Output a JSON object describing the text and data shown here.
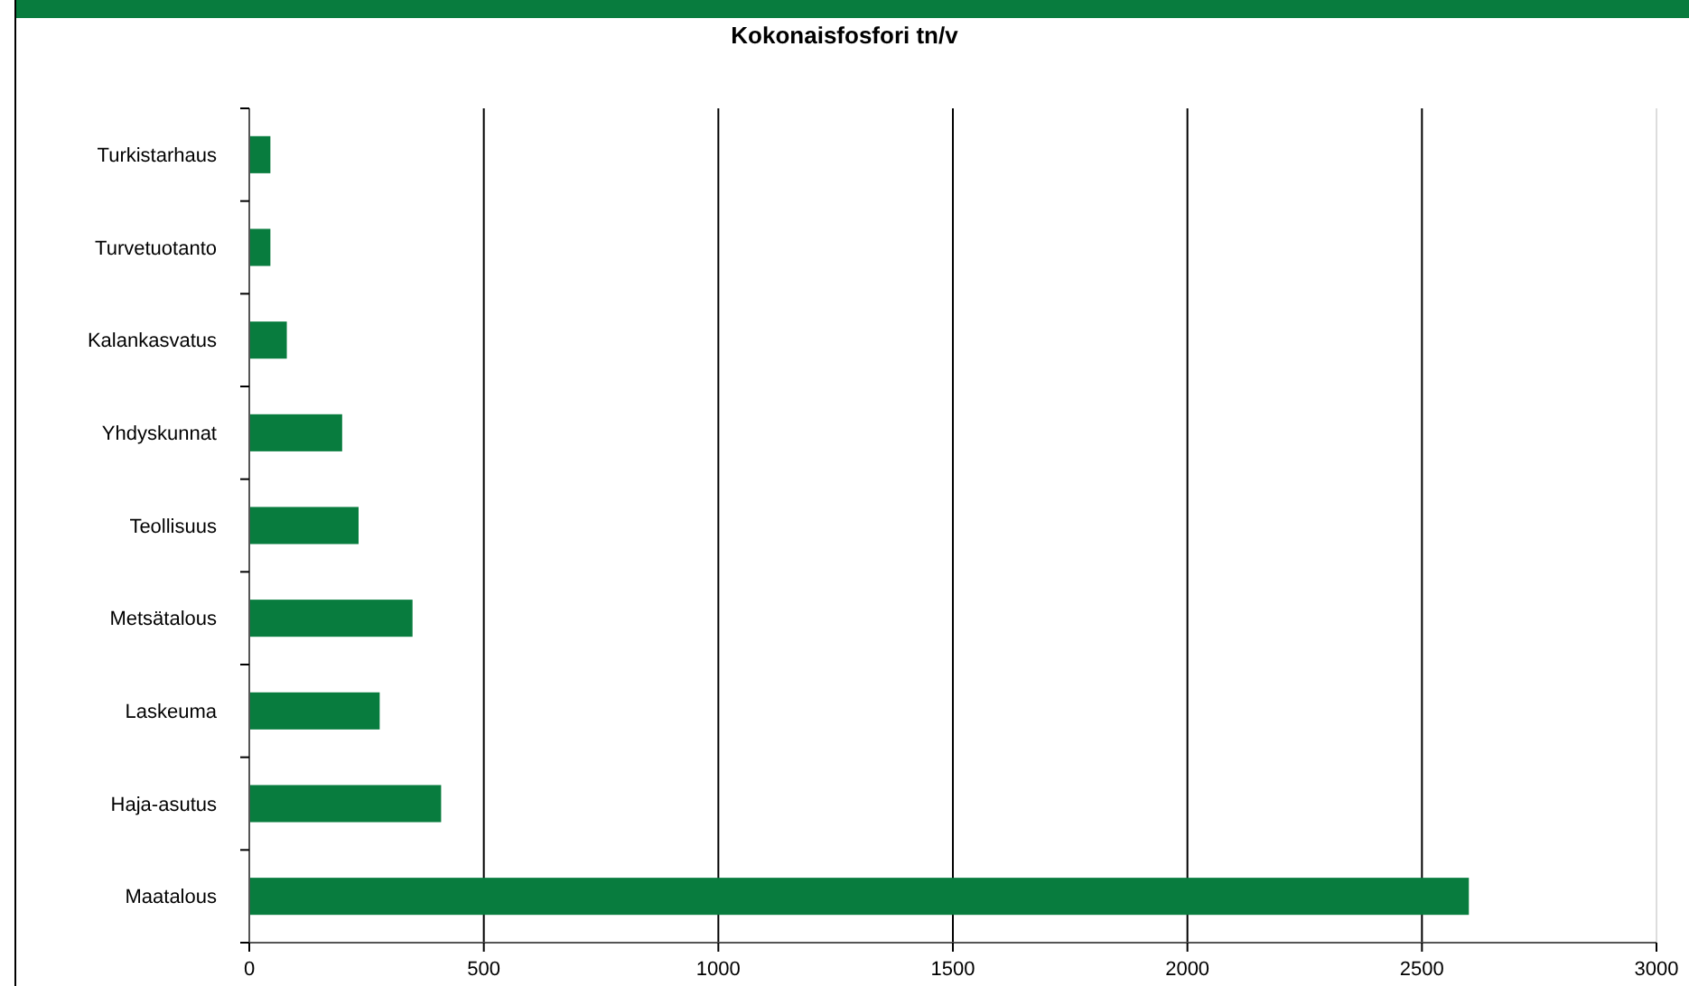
{
  "chart_data": {
    "type": "bar",
    "orientation": "horizontal",
    "title": "Kokonaisfosfori tn/v",
    "categories": [
      "Turkistarhaus",
      "Turvetuotanto",
      "Kalankasvatus",
      "Yhdyskunnat",
      "Teollisuus",
      "Metsätalous",
      "Laskeuma",
      "Haja-asutus",
      "Maatalous"
    ],
    "values": [
      45,
      45,
      80,
      198,
      233,
      348,
      278,
      409,
      2600
    ],
    "color": "#087c3e",
    "xlim": [
      0,
      3000
    ],
    "xticks": [
      0,
      500,
      1000,
      1500,
      2000,
      2500,
      3000
    ],
    "grid": "x"
  }
}
